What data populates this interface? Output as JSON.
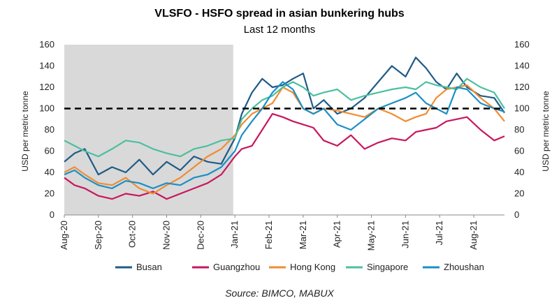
{
  "chart_data": {
    "type": "line",
    "title": "VLSFO - HSFO spread in asian bunkering hubs",
    "subtitle": "Last 12 months",
    "ylabel": "USD per metric tonne",
    "y2label": "USD per metric tonne",
    "ylim": [
      0,
      160
    ],
    "yticks": [
      0,
      20,
      40,
      60,
      80,
      100,
      120,
      140,
      160
    ],
    "xticks": [
      "Aug-20",
      "Sep-20",
      "Oct-20",
      "Nov-20",
      "Dec-20",
      "Jan-21",
      "Feb-21",
      "Mar-21",
      "Apr-21",
      "May-21",
      "Jun-21",
      "Jul-21",
      "Aug-21"
    ],
    "x_unit": "months since start of Aug-20",
    "xlim": [
      0,
      12.9
    ],
    "shaded_region": [
      0,
      4.95
    ],
    "reference_line": 100,
    "source": "Source: BIMCO, MABUX",
    "series": [
      {
        "name": "Busan",
        "color": "#1f5b86",
        "x": [
          0,
          0.3,
          0.6,
          1.0,
          1.4,
          1.8,
          2.2,
          2.6,
          3.0,
          3.4,
          3.8,
          4.2,
          4.6,
          5.0,
          5.2,
          5.5,
          5.8,
          6.1,
          6.4,
          6.7,
          7.0,
          7.3,
          7.6,
          8.0,
          8.4,
          8.8,
          9.2,
          9.6,
          10.0,
          10.3,
          10.6,
          10.9,
          11.2,
          11.5,
          11.8,
          12.2,
          12.6,
          12.9
        ],
        "values": [
          50,
          58,
          62,
          38,
          45,
          40,
          52,
          38,
          50,
          42,
          55,
          50,
          48,
          72,
          95,
          115,
          128,
          120,
          122,
          128,
          133,
          100,
          108,
          95,
          100,
          110,
          125,
          140,
          130,
          148,
          138,
          125,
          118,
          133,
          120,
          112,
          110,
          96
        ]
      },
      {
        "name": "Guangzhou",
        "color": "#c8175e",
        "x": [
          0,
          0.3,
          0.6,
          1.0,
          1.4,
          1.8,
          2.2,
          2.6,
          3.0,
          3.4,
          3.8,
          4.2,
          4.6,
          5.0,
          5.2,
          5.5,
          5.8,
          6.1,
          6.4,
          6.7,
          7.0,
          7.3,
          7.6,
          8.0,
          8.4,
          8.8,
          9.2,
          9.6,
          10.0,
          10.3,
          10.6,
          10.9,
          11.2,
          11.5,
          11.8,
          12.2,
          12.6,
          12.9
        ],
        "values": [
          35,
          28,
          25,
          18,
          15,
          20,
          18,
          22,
          15,
          20,
          25,
          30,
          38,
          55,
          62,
          65,
          80,
          95,
          92,
          88,
          85,
          82,
          70,
          65,
          75,
          62,
          68,
          72,
          70,
          78,
          80,
          82,
          88,
          90,
          92,
          80,
          70,
          74
        ]
      },
      {
        "name": "Hong Kong",
        "color": "#f08c32",
        "x": [
          0,
          0.3,
          0.6,
          1.0,
          1.4,
          1.8,
          2.2,
          2.6,
          3.0,
          3.4,
          3.8,
          4.2,
          4.6,
          5.0,
          5.2,
          5.5,
          5.8,
          6.1,
          6.4,
          6.7,
          7.0,
          7.3,
          7.6,
          8.0,
          8.4,
          8.8,
          9.2,
          9.6,
          10.0,
          10.3,
          10.6,
          10.9,
          11.2,
          11.5,
          11.8,
          12.2,
          12.6,
          12.9
        ],
        "values": [
          40,
          45,
          38,
          30,
          28,
          35,
          25,
          20,
          28,
          35,
          45,
          55,
          62,
          75,
          85,
          95,
          100,
          105,
          120,
          115,
          100,
          95,
          100,
          98,
          95,
          92,
          100,
          95,
          88,
          92,
          95,
          110,
          118,
          120,
          122,
          110,
          100,
          88
        ]
      },
      {
        "name": "Singapore",
        "color": "#4dbfa0",
        "x": [
          0,
          0.3,
          0.6,
          1.0,
          1.4,
          1.8,
          2.2,
          2.6,
          3.0,
          3.4,
          3.8,
          4.2,
          4.6,
          5.0,
          5.2,
          5.5,
          5.8,
          6.1,
          6.4,
          6.7,
          7.0,
          7.3,
          7.6,
          8.0,
          8.4,
          8.8,
          9.2,
          9.6,
          10.0,
          10.3,
          10.6,
          10.9,
          11.2,
          11.5,
          11.8,
          12.2,
          12.6,
          12.9
        ],
        "values": [
          70,
          65,
          60,
          55,
          62,
          70,
          68,
          62,
          58,
          55,
          62,
          65,
          70,
          72,
          90,
          100,
          108,
          112,
          120,
          125,
          120,
          112,
          115,
          118,
          108,
          112,
          115,
          118,
          120,
          118,
          125,
          122,
          120,
          118,
          128,
          120,
          115,
          100
        ]
      },
      {
        "name": "Zhoushan",
        "color": "#1b8fc6",
        "x": [
          0,
          0.3,
          0.6,
          1.0,
          1.4,
          1.8,
          2.2,
          2.6,
          3.0,
          3.4,
          3.8,
          4.2,
          4.6,
          5.0,
          5.2,
          5.5,
          5.8,
          6.1,
          6.4,
          6.7,
          7.0,
          7.3,
          7.6,
          8.0,
          8.4,
          8.8,
          9.2,
          9.6,
          10.0,
          10.3,
          10.6,
          10.9,
          11.2,
          11.5,
          11.8,
          12.2,
          12.6,
          12.9
        ],
        "values": [
          38,
          42,
          35,
          28,
          25,
          32,
          30,
          25,
          30,
          28,
          35,
          38,
          45,
          60,
          75,
          88,
          100,
          115,
          125,
          118,
          100,
          95,
          100,
          85,
          80,
          90,
          100,
          105,
          110,
          115,
          105,
          100,
          95,
          120,
          118,
          105,
          100,
          97
        ]
      }
    ]
  }
}
